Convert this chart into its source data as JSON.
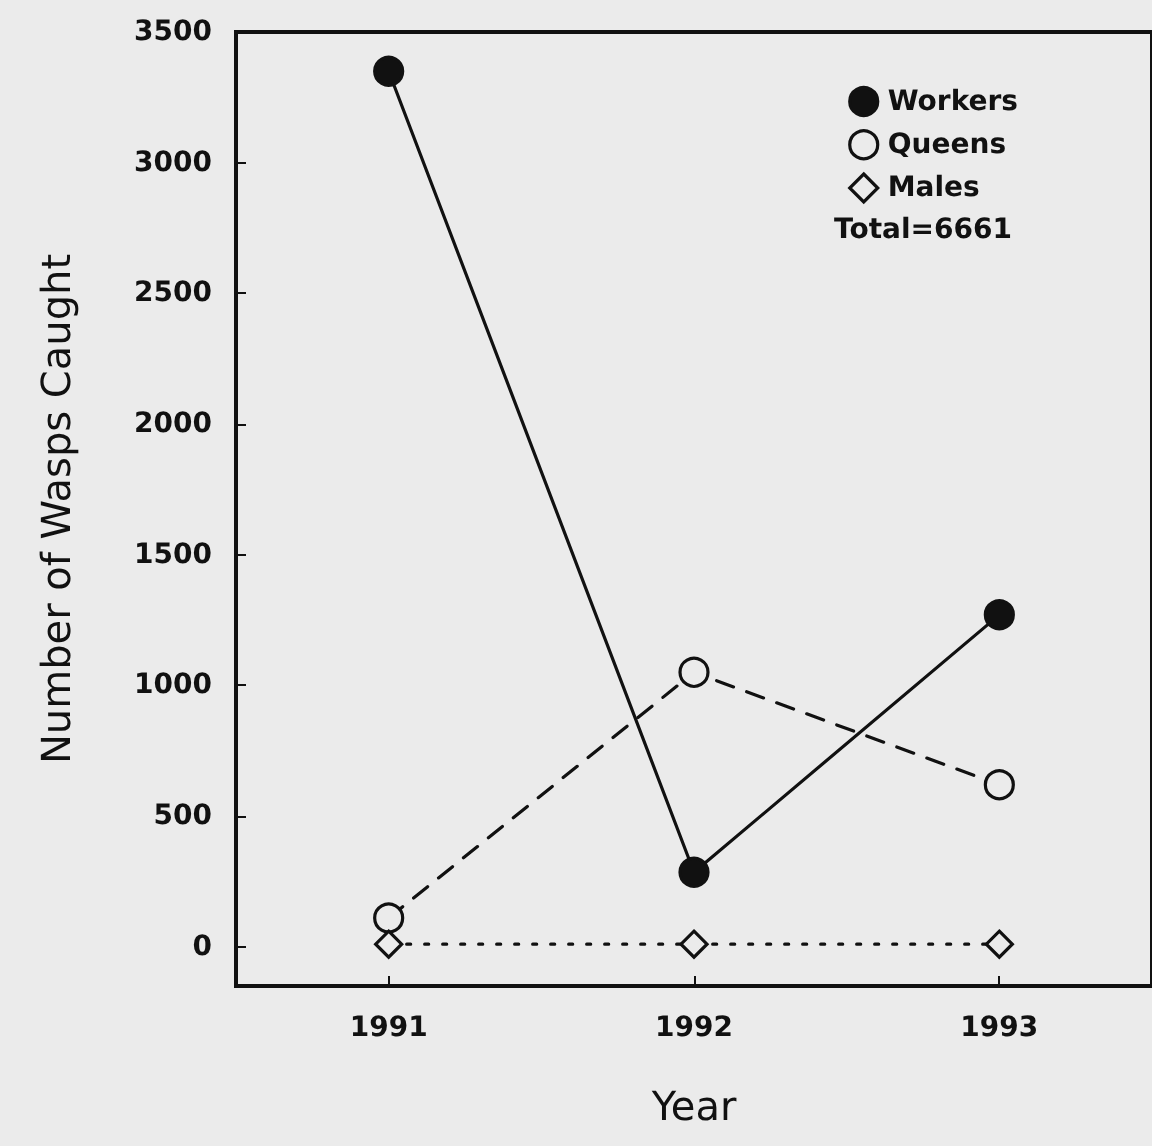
{
  "chart_data": {
    "type": "line",
    "xlabel": "Year",
    "ylabel": "Number of Wasps Caught",
    "categories": [
      "1991",
      "1992",
      "1993"
    ],
    "series": [
      {
        "name": "Workers",
        "color": "#111111",
        "marker": "circle",
        "line_style": "solid",
        "values": [
          3350,
          285,
          1270
        ]
      },
      {
        "name": "Queens",
        "color": "#111111",
        "marker": "circle",
        "line_style": "dashed",
        "values": [
          110,
          1050,
          620
        ]
      },
      {
        "name": "Males",
        "color": "#111111",
        "marker": "diamond",
        "line_style": "dotted",
        "values": [
          10,
          10,
          10
        ]
      }
    ],
    "ylim": [
      -150,
      3500
    ],
    "yticks": [
      0,
      500,
      1000,
      1500,
      2000,
      2500,
      3000,
      3500
    ],
    "grid": false,
    "legend": "top right",
    "annotations": [
      "Total=6661"
    ]
  }
}
